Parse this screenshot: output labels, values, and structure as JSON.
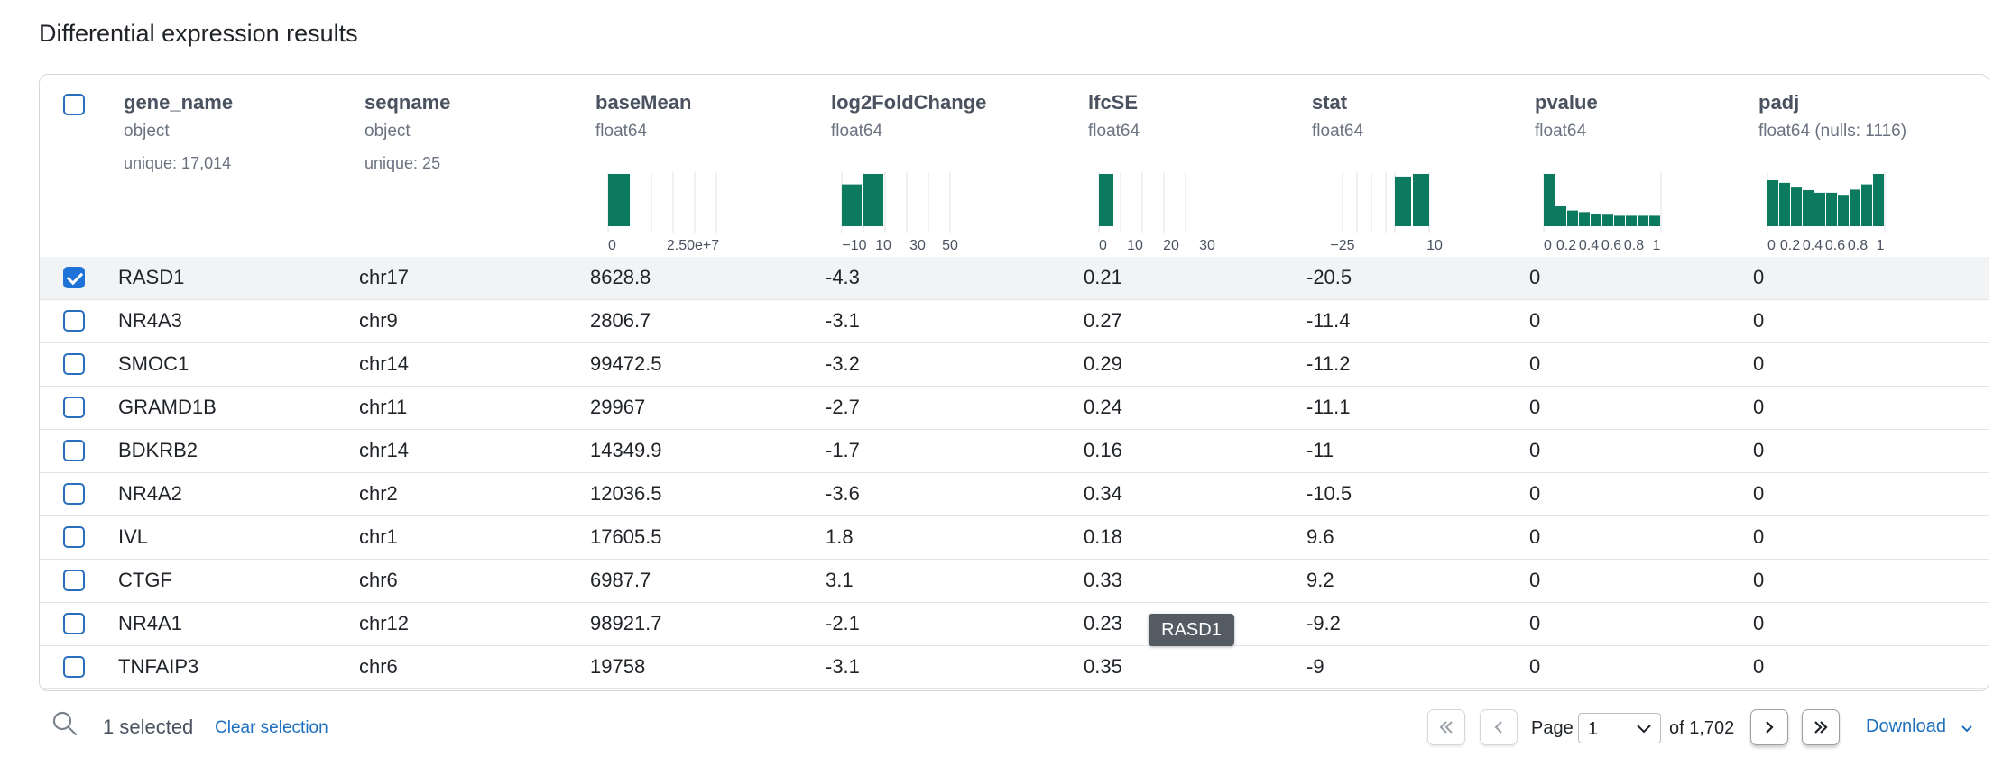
{
  "title": "Differential expression results",
  "columns": [
    {
      "name": "gene_name",
      "type": "object",
      "unique": "unique: 17,014"
    },
    {
      "name": "seqname",
      "type": "object",
      "unique": "unique: 25"
    },
    {
      "name": "baseMean",
      "type": "float64",
      "unique": ""
    },
    {
      "name": "log2FoldChange",
      "type": "float64",
      "unique": ""
    },
    {
      "name": "lfcSE",
      "type": "float64",
      "unique": ""
    },
    {
      "name": "stat",
      "type": "float64",
      "unique": ""
    },
    {
      "name": "pvalue",
      "type": "float64",
      "unique": ""
    },
    {
      "name": "padj",
      "type": "float64 (nulls: 1116)",
      "unique": ""
    }
  ],
  "histograms": {
    "baseMean": {
      "ticks": [
        "0",
        "2.50e+7"
      ],
      "bars": [
        1.0
      ]
    },
    "log2FoldChange": {
      "ticks": [
        "−10",
        "10",
        "30",
        "50"
      ],
      "bars": [
        0.8,
        1.0
      ]
    },
    "lfcSE": {
      "ticks": [
        "0",
        "10",
        "20",
        "30"
      ],
      "bars": [
        1.0
      ]
    },
    "stat": {
      "ticks": [
        "−25",
        "10"
      ],
      "bars": [
        0.95,
        1.0
      ]
    },
    "pvalue": {
      "ticks": [
        "0",
        "0.2",
        "0.4",
        "0.6",
        "0.8",
        "1"
      ],
      "bars": [
        1.0,
        0.38,
        0.3,
        0.27,
        0.24,
        0.22,
        0.2,
        0.2,
        0.2,
        0.2
      ]
    },
    "padj": {
      "ticks": [
        "0",
        "0.2",
        "0.4",
        "0.6",
        "0.8",
        "1"
      ],
      "bars": [
        0.88,
        0.83,
        0.74,
        0.69,
        0.64,
        0.64,
        0.6,
        0.7,
        0.8,
        1.0
      ]
    }
  },
  "rows": [
    {
      "gene_name": "RASD1",
      "seqname": "chr17",
      "baseMean": "8628.8",
      "log2FoldChange": "-4.3",
      "lfcSE": "0.21",
      "stat": "-20.5",
      "pvalue": "0",
      "padj": "0",
      "selected": true
    },
    {
      "gene_name": "NR4A3",
      "seqname": "chr9",
      "baseMean": "2806.7",
      "log2FoldChange": "-3.1",
      "lfcSE": "0.27",
      "stat": "-11.4",
      "pvalue": "0",
      "padj": "0",
      "selected": false
    },
    {
      "gene_name": "SMOC1",
      "seqname": "chr14",
      "baseMean": "99472.5",
      "log2FoldChange": "-3.2",
      "lfcSE": "0.29",
      "stat": "-11.2",
      "pvalue": "0",
      "padj": "0",
      "selected": false
    },
    {
      "gene_name": "GRAMD1B",
      "seqname": "chr11",
      "baseMean": "29967",
      "log2FoldChange": "-2.7",
      "lfcSE": "0.24",
      "stat": "-11.1",
      "pvalue": "0",
      "padj": "0",
      "selected": false
    },
    {
      "gene_name": "BDKRB2",
      "seqname": "chr14",
      "baseMean": "14349.9",
      "log2FoldChange": "-1.7",
      "lfcSE": "0.16",
      "stat": "-11",
      "pvalue": "0",
      "padj": "0",
      "selected": false
    },
    {
      "gene_name": "NR4A2",
      "seqname": "chr2",
      "baseMean": "12036.5",
      "log2FoldChange": "-3.6",
      "lfcSE": "0.34",
      "stat": "-10.5",
      "pvalue": "0",
      "padj": "0",
      "selected": false
    },
    {
      "gene_name": "IVL",
      "seqname": "chr1",
      "baseMean": "17605.5",
      "log2FoldChange": "1.8",
      "lfcSE": "0.18",
      "stat": "9.6",
      "pvalue": "0",
      "padj": "0",
      "selected": false
    },
    {
      "gene_name": "CTGF",
      "seqname": "chr6",
      "baseMean": "6987.7",
      "log2FoldChange": "3.1",
      "lfcSE": "0.33",
      "stat": "9.2",
      "pvalue": "0",
      "padj": "0",
      "selected": false
    },
    {
      "gene_name": "NR4A1",
      "seqname": "chr12",
      "baseMean": "98921.7",
      "log2FoldChange": "-2.1",
      "lfcSE": "0.23",
      "stat": "-9.2",
      "pvalue": "0",
      "padj": "0",
      "selected": false
    },
    {
      "gene_name": "TNFAIP3",
      "seqname": "chr6",
      "baseMean": "19758",
      "log2FoldChange": "-3.1",
      "lfcSE": "0.35",
      "stat": "-9",
      "pvalue": "0",
      "padj": "0",
      "selected": false
    }
  ],
  "tooltip": "RASD1",
  "footer": {
    "search_icon": "search-icon",
    "selected_text": "1 selected",
    "clear_label": "Clear selection",
    "page_label": "Page",
    "page_value": "1",
    "of_label": "of 1,702",
    "download_label": "Download"
  },
  "colors": {
    "accent": "#1f73d6",
    "hist_bar": "#0c7a5e",
    "link": "#1f6fbf"
  }
}
